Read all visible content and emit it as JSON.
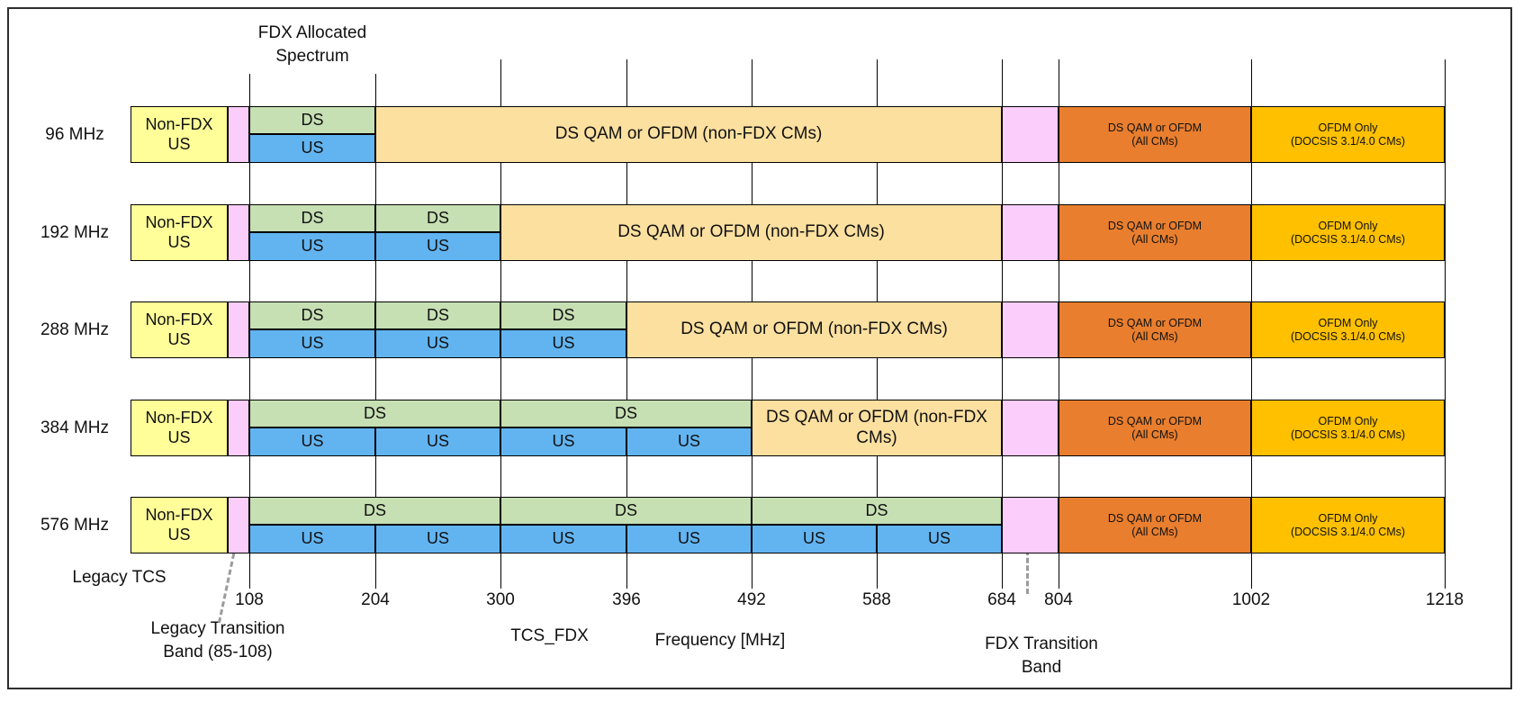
{
  "title": "FDX Allocated\nSpectrum",
  "colors": {
    "yellow": "#FFFE99",
    "pink": "#FBCDFB",
    "green": "#C6DFB3",
    "blue": "#62B4F1",
    "tan": "#FCE0A0",
    "orange": "#E87E2E",
    "gold": "#FFC000",
    "gridline": "#000000",
    "dashed_leader": "#9B9B9B"
  },
  "axis": {
    "xlabel": "Frequency [MHz]",
    "ticks": [
      108,
      204,
      300,
      396,
      492,
      588,
      684,
      804,
      1002,
      1218
    ]
  },
  "bands": {
    "non_fdx": "Non-FDX\nUS",
    "ds": "DS",
    "us": "US",
    "qam_nonfdx": "DS QAM or OFDM (non-FDX CMs)",
    "qam_all": "DS QAM or OFDM\n(All CMs)",
    "ofdm_only": "OFDM Only\n(DOCSIS 3.1/4.0 CMs)"
  },
  "rows": [
    {
      "label": "96 MHz",
      "ds": [
        [
          108,
          204
        ]
      ],
      "us": [
        [
          108,
          204
        ]
      ],
      "fdx_end": 204
    },
    {
      "label": "192 MHz",
      "ds": [
        [
          108,
          204
        ],
        [
          204,
          300
        ]
      ],
      "us": [
        [
          108,
          204
        ],
        [
          204,
          300
        ]
      ],
      "fdx_end": 300
    },
    {
      "label": "288 MHz",
      "ds": [
        [
          108,
          204
        ],
        [
          204,
          300
        ],
        [
          300,
          396
        ]
      ],
      "us": [
        [
          108,
          204
        ],
        [
          204,
          300
        ],
        [
          300,
          396
        ]
      ],
      "fdx_end": 396
    },
    {
      "label": "384 MHz",
      "ds": [
        [
          108,
          300
        ],
        [
          300,
          492
        ]
      ],
      "us": [
        [
          108,
          204
        ],
        [
          204,
          300
        ],
        [
          300,
          396
        ],
        [
          396,
          492
        ]
      ],
      "fdx_end": 492
    },
    {
      "label": "576 MHz",
      "ds": [
        [
          108,
          300
        ],
        [
          300,
          492
        ],
        [
          492,
          684
        ]
      ],
      "us": [
        [
          108,
          204
        ],
        [
          204,
          300
        ],
        [
          300,
          396
        ],
        [
          396,
          492
        ],
        [
          492,
          588
        ],
        [
          588,
          684
        ]
      ],
      "fdx_end": 684
    }
  ],
  "annotations": {
    "legacy_tcs": "Legacy TCS",
    "legacy_transition": "Legacy Transition\nBand (85-108)",
    "tcs_fdx": "TCS_FDX",
    "frequency": "Frequency [MHz]",
    "fdx_transition": "FDX Transition\nBand"
  }
}
